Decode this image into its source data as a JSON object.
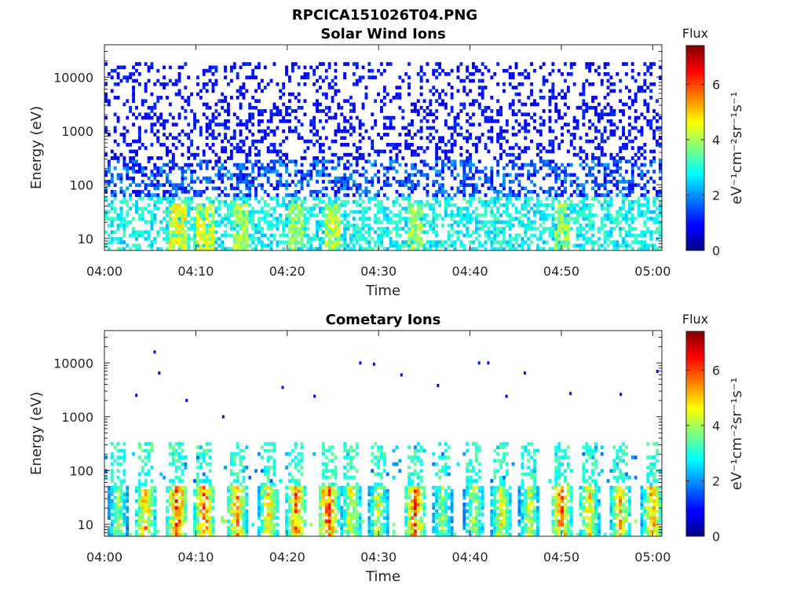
{
  "figure": {
    "filename_title": "RPCICA151026T04.PNG"
  },
  "colors": {
    "axis": "#262626",
    "background": "#ffffff"
  },
  "chart_data": [
    {
      "type": "heatmap",
      "title": "Solar Wind Ions",
      "xlabel": "Time",
      "ylabel": "Energy (eV)",
      "x_range": [
        "04:00",
        "05:01"
      ],
      "x_ticks": [
        "04:00",
        "04:10",
        "04:20",
        "04:30",
        "04:40",
        "04:50",
        "05:00"
      ],
      "y_scale": "log",
      "y_range": [
        6,
        40000
      ],
      "y_ticks": [
        10,
        100,
        1000,
        10000
      ],
      "y_tick_labels": [
        "10",
        "100",
        "1000",
        "10000"
      ],
      "colorbar": {
        "title": "Flux",
        "label": "eV⁻¹cm⁻²sr⁻¹s⁻¹",
        "range": [
          0,
          7.4
        ],
        "ticks": [
          "0",
          "2",
          "4",
          "6"
        ],
        "colormap": "jet"
      },
      "features": {
        "low_energy_band_eV": [
          6,
          60
        ],
        "low_energy_flux": 3.0,
        "scattered_high_energy_flux": 1.0,
        "scattered_range_eV": [
          60,
          20000
        ],
        "hotspots_min_eV": [
          [
            8,
            4.6
          ],
          [
            11,
            4.4
          ],
          [
            15,
            4.2
          ],
          [
            21,
            4.0
          ],
          [
            25,
            4.3
          ],
          [
            34,
            4.1
          ],
          [
            50,
            4.0
          ]
        ]
      }
    },
    {
      "type": "heatmap",
      "title": "Cometary Ions",
      "xlabel": "Time",
      "ylabel": "Energy (eV)",
      "x_range": [
        "04:00",
        "05:01"
      ],
      "x_ticks": [
        "04:00",
        "04:10",
        "04:20",
        "04:30",
        "04:40",
        "04:50",
        "05:00"
      ],
      "y_scale": "log",
      "y_range": [
        6,
        40000
      ],
      "y_ticks": [
        10,
        100,
        1000,
        10000
      ],
      "y_tick_labels": [
        "10",
        "100",
        "1000",
        "10000"
      ],
      "colorbar": {
        "title": "Flux",
        "label": "eV⁻¹cm⁻²sr⁻¹s⁻¹",
        "range": [
          0,
          7.4
        ],
        "ticks": [
          "0",
          "2",
          "4",
          "6"
        ],
        "colormap": "jet"
      },
      "features": {
        "bursts_min_peakflux": [
          [
            1.5,
            4.2
          ],
          [
            4.5,
            5.6
          ],
          [
            8,
            6.5
          ],
          [
            11,
            6.2
          ],
          [
            14.5,
            5.8
          ],
          [
            18,
            5.4
          ],
          [
            21,
            6.0
          ],
          [
            24.5,
            6.6
          ],
          [
            27,
            5.0
          ],
          [
            30,
            4.6
          ],
          [
            34,
            6.3
          ],
          [
            37,
            4.2
          ],
          [
            40.5,
            4.4
          ],
          [
            43.5,
            5.0
          ],
          [
            46.5,
            4.6
          ],
          [
            50,
            6.2
          ],
          [
            53,
            5.2
          ],
          [
            56.5,
            5.4
          ],
          [
            60,
            5.6
          ]
        ],
        "sparse_high_energy_points_min_eV": [
          [
            5.5,
            16000
          ],
          [
            6,
            6500
          ],
          [
            3.5,
            2500
          ],
          [
            9,
            2000
          ],
          [
            13,
            1000
          ],
          [
            19.5,
            3500
          ],
          [
            23,
            2400
          ],
          [
            28,
            10000
          ],
          [
            29.5,
            9500
          ],
          [
            32.5,
            6000
          ],
          [
            36.5,
            3800
          ],
          [
            41,
            10000
          ],
          [
            42,
            10000
          ],
          [
            44,
            2400
          ],
          [
            46,
            6500
          ],
          [
            51,
            2700
          ],
          [
            56.5,
            2600
          ],
          [
            60.5,
            7000
          ]
        ]
      }
    }
  ]
}
